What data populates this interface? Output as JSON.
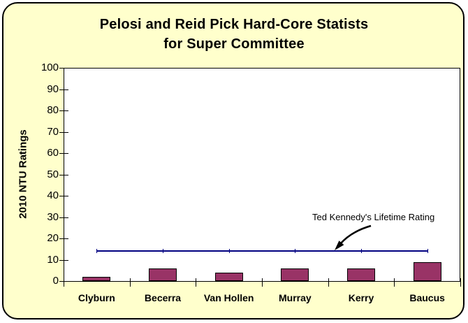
{
  "chart_data": {
    "type": "bar",
    "title_lines": [
      "Pelosi and Reid Pick Hard-Core Statists",
      "for Super Committee"
    ],
    "ylabel": "2010 NTU Ratings",
    "xlabel": "",
    "categories": [
      "Clyburn",
      "Becerra",
      "Van Hollen",
      "Murray",
      "Kerry",
      "Baucus"
    ],
    "values": [
      2,
      6,
      4,
      6,
      6,
      9
    ],
    "yticks": [
      0,
      10,
      20,
      30,
      40,
      50,
      60,
      70,
      80,
      90,
      100
    ],
    "ylim": [
      0,
      100
    ],
    "grid": false,
    "legend": "none",
    "reference_line": {
      "value": 14,
      "label": "Ted Kennedy's Lifetime Rating",
      "color": "#000080"
    },
    "colors": {
      "bar_fill": "#993366",
      "bar_border": "#000000",
      "chart_background": "#FFFFCC",
      "plot_background": "#FFFFFF",
      "axis": "#000000",
      "text": "#000000"
    }
  }
}
